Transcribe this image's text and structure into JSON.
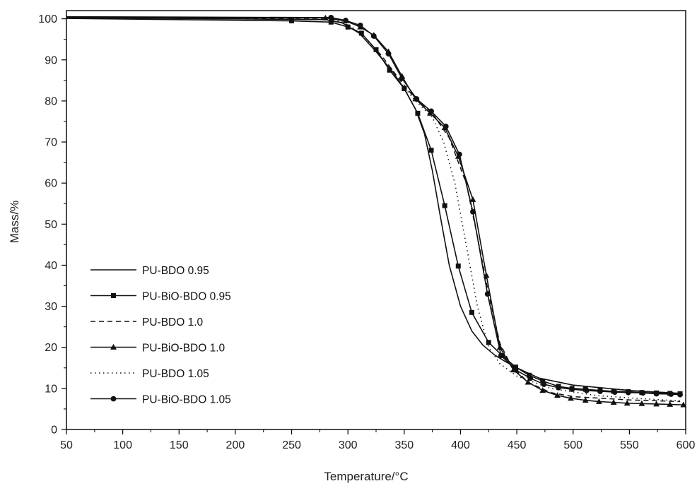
{
  "chart_data": {
    "type": "line",
    "title": "",
    "xlabel": "Temperature/°C",
    "ylabel": "Mass/%",
    "xlim": [
      50,
      600
    ],
    "ylim": [
      0,
      102
    ],
    "xticks": [
      50,
      100,
      150,
      200,
      250,
      300,
      350,
      400,
      450,
      500,
      550,
      600
    ],
    "yticks": [
      0,
      10,
      20,
      30,
      40,
      50,
      60,
      70,
      80,
      90,
      100
    ],
    "grid": false,
    "legend_position": "lower-left",
    "series": [
      {
        "name": "PU-BDO 0.95",
        "line_style": "solid",
        "marker": "none",
        "points": [
          [
            50,
            100.3
          ],
          [
            280,
            99.8
          ],
          [
            295,
            99.0
          ],
          [
            310,
            96.5
          ],
          [
            325,
            92.0
          ],
          [
            340,
            87.0
          ],
          [
            350,
            83.0
          ],
          [
            360,
            78.0
          ],
          [
            368,
            72.0
          ],
          [
            375,
            63.0
          ],
          [
            382,
            52.0
          ],
          [
            390,
            40.0
          ],
          [
            400,
            30.0
          ],
          [
            410,
            24.0
          ],
          [
            420,
            20.5
          ],
          [
            430,
            18.2
          ],
          [
            440,
            16.5
          ],
          [
            450,
            15.0
          ],
          [
            470,
            12.5
          ],
          [
            500,
            10.8
          ],
          [
            550,
            9.5
          ],
          [
            595,
            8.8
          ]
        ]
      },
      {
        "name": "PU-BiO-BDO 0.95",
        "line_style": "solid",
        "marker": "square",
        "points": [
          [
            50,
            100.1
          ],
          [
            250,
            99.5
          ],
          [
            285,
            99.2
          ],
          [
            300,
            98.0
          ],
          [
            312,
            96.5
          ],
          [
            325,
            92.5
          ],
          [
            337,
            87.5
          ],
          [
            350,
            83.0
          ],
          [
            362,
            77.0
          ],
          [
            374,
            68.0
          ],
          [
            386,
            54.5
          ],
          [
            398,
            39.8
          ],
          [
            410,
            28.5
          ],
          [
            425,
            21.2
          ],
          [
            437,
            18.0
          ],
          [
            449,
            15.2
          ],
          [
            461,
            13.2
          ],
          [
            473,
            11.8
          ],
          [
            487,
            10.5
          ],
          [
            499,
            10.0
          ],
          [
            511,
            9.8
          ],
          [
            524,
            9.5
          ],
          [
            536,
            9.3
          ],
          [
            549,
            9.2
          ],
          [
            561,
            9.0
          ],
          [
            574,
            8.9
          ],
          [
            586,
            8.8
          ],
          [
            595,
            8.7
          ]
        ]
      },
      {
        "name": "PU-BDO 1.0",
        "line_style": "dashed",
        "marker": "none",
        "points": [
          [
            50,
            100.3
          ],
          [
            285,
            99.9
          ],
          [
            300,
            98.5
          ],
          [
            315,
            95.5
          ],
          [
            330,
            91.0
          ],
          [
            345,
            85.5
          ],
          [
            360,
            80.5
          ],
          [
            375,
            77.0
          ],
          [
            390,
            71.0
          ],
          [
            405,
            60.0
          ],
          [
            415,
            47.0
          ],
          [
            425,
            33.0
          ],
          [
            435,
            21.0
          ],
          [
            445,
            15.5
          ],
          [
            460,
            11.5
          ],
          [
            480,
            9.0
          ],
          [
            500,
            8.0
          ],
          [
            550,
            7.2
          ],
          [
            595,
            6.8
          ]
        ]
      },
      {
        "name": "PU-BiO-BDO 1.0",
        "line_style": "solid",
        "marker": "triangle",
        "points": [
          [
            50,
            100.3
          ],
          [
            280,
            100.2
          ],
          [
            298,
            99.5
          ],
          [
            311,
            98.0
          ],
          [
            323,
            96.0
          ],
          [
            336,
            92.0
          ],
          [
            348,
            86.0
          ],
          [
            360,
            80.5
          ],
          [
            373,
            77.0
          ],
          [
            386,
            73.5
          ],
          [
            398,
            66.5
          ],
          [
            411,
            56.0
          ],
          [
            423,
            37.5
          ],
          [
            435,
            20.0
          ],
          [
            447,
            14.5
          ],
          [
            460,
            11.5
          ],
          [
            473,
            9.5
          ],
          [
            486,
            8.3
          ],
          [
            498,
            7.6
          ],
          [
            511,
            7.1
          ],
          [
            523,
            6.8
          ],
          [
            536,
            6.6
          ],
          [
            548,
            6.4
          ],
          [
            561,
            6.3
          ],
          [
            574,
            6.2
          ],
          [
            586,
            6.1
          ],
          [
            598,
            6.0
          ]
        ]
      },
      {
        "name": "PU-BDO 1.05",
        "line_style": "dotted",
        "marker": "none",
        "points": [
          [
            50,
            100.5
          ],
          [
            285,
            100.2
          ],
          [
            300,
            98.8
          ],
          [
            315,
            95.5
          ],
          [
            330,
            90.5
          ],
          [
            345,
            85.0
          ],
          [
            360,
            80.0
          ],
          [
            375,
            76.0
          ],
          [
            385,
            70.0
          ],
          [
            395,
            60.0
          ],
          [
            405,
            45.0
          ],
          [
            415,
            30.0
          ],
          [
            425,
            20.0
          ],
          [
            435,
            16.0
          ],
          [
            450,
            13.0
          ],
          [
            480,
            10.0
          ],
          [
            520,
            8.3
          ],
          [
            560,
            7.5
          ],
          [
            595,
            7.0
          ]
        ]
      },
      {
        "name": "PU-BiO-BDO 1.05",
        "line_style": "solid",
        "marker": "circle",
        "points": [
          [
            50,
            100.5
          ],
          [
            285,
            100.3
          ],
          [
            298,
            99.6
          ],
          [
            311,
            98.4
          ],
          [
            323,
            95.8
          ],
          [
            336,
            91.5
          ],
          [
            348,
            85.5
          ],
          [
            361,
            80.5
          ],
          [
            374,
            77.5
          ],
          [
            387,
            73.8
          ],
          [
            399,
            67.0
          ],
          [
            411,
            53.0
          ],
          [
            424,
            33.0
          ],
          [
            436,
            18.0
          ],
          [
            449,
            14.5
          ],
          [
            462,
            12.5
          ],
          [
            474,
            11.0
          ],
          [
            487,
            10.2
          ],
          [
            499,
            9.8
          ],
          [
            512,
            9.5
          ],
          [
            524,
            9.3
          ],
          [
            537,
            9.1
          ],
          [
            549,
            9.0
          ],
          [
            562,
            8.9
          ],
          [
            574,
            8.7
          ],
          [
            587,
            8.6
          ],
          [
            595,
            8.5
          ]
        ]
      }
    ]
  }
}
